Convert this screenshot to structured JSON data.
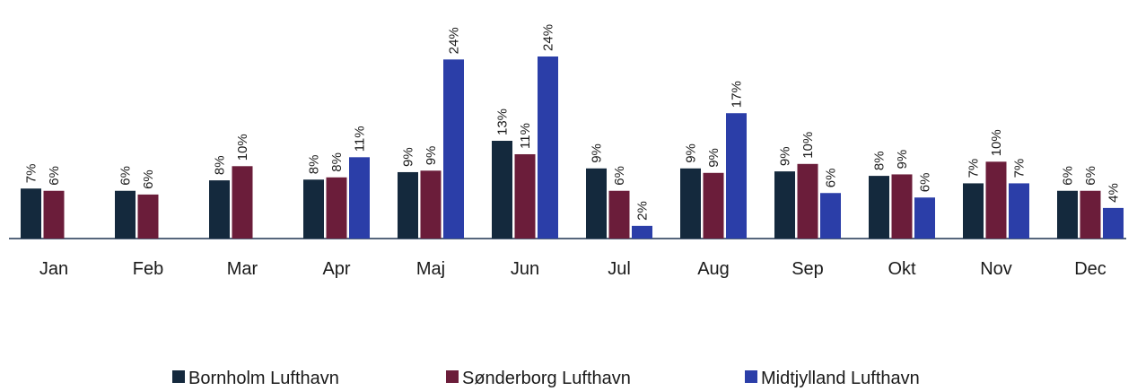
{
  "chart_data": {
    "type": "bar",
    "categories": [
      "Jan",
      "Feb",
      "Mar",
      "Apr",
      "Maj",
      "Jun",
      "Jul",
      "Aug",
      "Sep",
      "Okt",
      "Nov",
      "Dec"
    ],
    "ylim": [
      0,
      25
    ],
    "legend": "bottom",
    "series": [
      {
        "name": "Bornholm Lufthavn",
        "color": "#14293d",
        "values": [
          6.7,
          6.4,
          7.8,
          7.9,
          8.9,
          13.1,
          9.4,
          9.4,
          9.0,
          8.4,
          7.4,
          6.4
        ],
        "value_labels": [
          "7%",
          "6%",
          "8%",
          "8%",
          "9%",
          "13%",
          "9%",
          "9%",
          "9%",
          "8%",
          "7%",
          "6%"
        ]
      },
      {
        "name": "Sønderborg Lufthavn",
        "color": "#6b1d3a",
        "values": [
          6.4,
          5.9,
          9.7,
          8.2,
          9.1,
          11.3,
          6.4,
          8.8,
          10.0,
          8.6,
          10.3,
          6.4
        ],
        "value_labels": [
          "6%",
          "6%",
          "10%",
          "8%",
          "9%",
          "11%",
          "6%",
          "9%",
          "10%",
          "9%",
          "10%",
          "6%"
        ]
      },
      {
        "name": "Midtjylland Lufthavn",
        "color": "#2b3ea8",
        "values": [
          null,
          null,
          null,
          10.9,
          24.0,
          24.4,
          1.7,
          16.8,
          6.1,
          5.5,
          7.4,
          4.1
        ],
        "value_labels": [
          null,
          null,
          null,
          "11%",
          "24%",
          "24%",
          "2%",
          "17%",
          "6%",
          "6%",
          "7%",
          "4%"
        ]
      }
    ]
  }
}
